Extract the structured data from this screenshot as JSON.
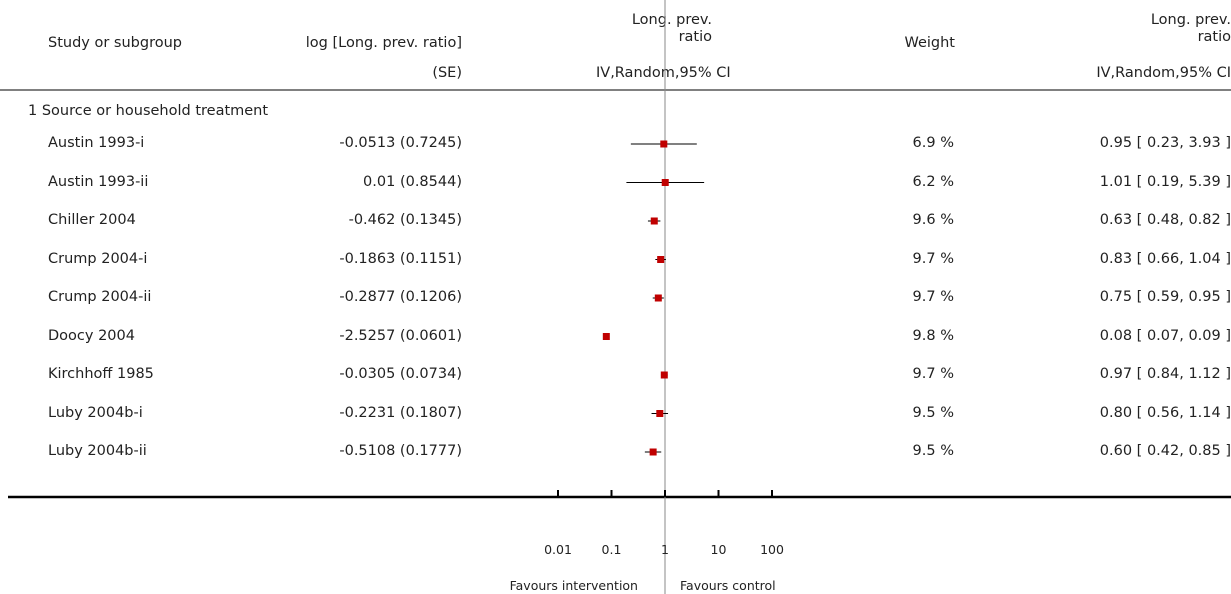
{
  "chart_data": {
    "type": "forest",
    "columns": {
      "study": "Study or subgroup",
      "effect_line1": "log [Long. prev. ratio]",
      "effect_line2": "(SE)",
      "plot_line1": "Long. prev.",
      "plot_line2": "ratio",
      "plot_line3": "IV,Random,95% CI",
      "weight": "Weight",
      "ci_line1": "Long. prev.",
      "ci_line2": "ratio",
      "ci_line3": "IV,Random,95% CI"
    },
    "subgroup": "1 Source or household treatment",
    "scale": "log",
    "xlim": [
      0.01,
      100
    ],
    "x_ticks": [
      "0.01",
      "0.1",
      "1",
      "10",
      "100"
    ],
    "reference_line": 1,
    "favours_left": "Favours intervention",
    "favours_right": "Favours control",
    "marker_color": "#c00000",
    "studies": [
      {
        "name": "Austin 1993-i",
        "effect": "-0.0513 (0.7245)",
        "weight": "6.9 %",
        "ci_text": "0.95 [ 0.23, 3.93 ]",
        "ratio": 0.95,
        "lower": 0.23,
        "upper": 3.93
      },
      {
        "name": "Austin 1993-ii",
        "effect": "0.01 (0.8544)",
        "weight": "6.2 %",
        "ci_text": "1.01 [ 0.19, 5.39 ]",
        "ratio": 1.01,
        "lower": 0.19,
        "upper": 5.39
      },
      {
        "name": "Chiller 2004",
        "effect": "-0.462 (0.1345)",
        "weight": "9.6 %",
        "ci_text": "0.63 [ 0.48, 0.82 ]",
        "ratio": 0.63,
        "lower": 0.48,
        "upper": 0.82
      },
      {
        "name": "Crump 2004-i",
        "effect": "-0.1863 (0.1151)",
        "weight": "9.7 %",
        "ci_text": "0.83 [ 0.66, 1.04 ]",
        "ratio": 0.83,
        "lower": 0.66,
        "upper": 1.04
      },
      {
        "name": "Crump 2004-ii",
        "effect": "-0.2877 (0.1206)",
        "weight": "9.7 %",
        "ci_text": "0.75 [ 0.59, 0.95 ]",
        "ratio": 0.75,
        "lower": 0.59,
        "upper": 0.95
      },
      {
        "name": "Doocy 2004",
        "effect": "-2.5257 (0.0601)",
        "weight": "9.8 %",
        "ci_text": "0.08 [ 0.07, 0.09 ]",
        "ratio": 0.08,
        "lower": 0.07,
        "upper": 0.09
      },
      {
        "name": "Kirchhoff 1985",
        "effect": "-0.0305 (0.0734)",
        "weight": "9.7 %",
        "ci_text": "0.97 [ 0.84, 1.12 ]",
        "ratio": 0.97,
        "lower": 0.84,
        "upper": 1.12
      },
      {
        "name": "Luby 2004b-i",
        "effect": "-0.2231 (0.1807)",
        "weight": "9.5 %",
        "ci_text": "0.80 [ 0.56, 1.14 ]",
        "ratio": 0.8,
        "lower": 0.56,
        "upper": 1.14
      },
      {
        "name": "Luby 2004b-ii",
        "effect": "-0.5108 (0.1777)",
        "weight": "9.5 %",
        "ci_text": "0.60 [ 0.42, 0.85 ]",
        "ratio": 0.6,
        "lower": 0.42,
        "upper": 0.85
      }
    ]
  }
}
